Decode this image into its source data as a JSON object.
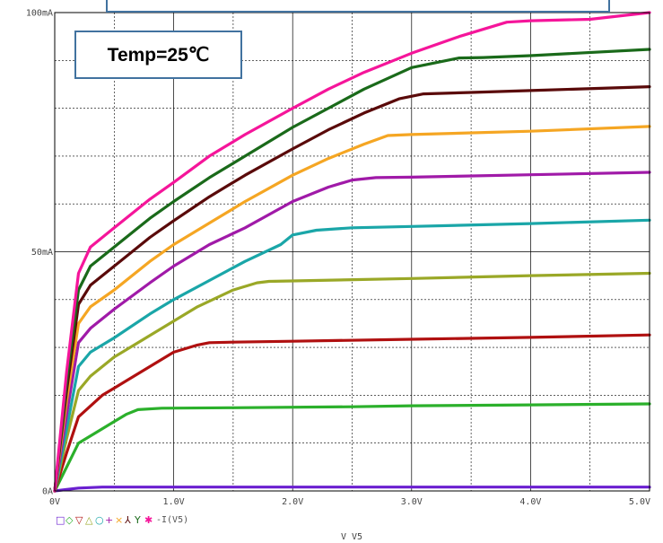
{
  "chart_data": {
    "type": "line",
    "title": "",
    "annotation": "Temp=25℃",
    "xlabel": "V V5",
    "ylabel": "",
    "xlim": [
      0,
      5
    ],
    "ylim": [
      0,
      100
    ],
    "x_ticks": [
      "0V",
      "1.0V",
      "2.0V",
      "3.0V",
      "4.0V",
      "5.0V"
    ],
    "y_ticks": [
      "0A",
      "50mA",
      "100mA"
    ],
    "grid": true,
    "legend": {
      "markers": [
        "□",
        "◇",
        "▽",
        "△",
        "○",
        "+",
        "×",
        "⅄",
        "Y",
        "✱"
      ],
      "marker_colors": [
        "#6a1fd0",
        "#2bb02b",
        "#b01010",
        "#9aa827",
        "#1aa6a8",
        "#a01aa8",
        "#f5a623",
        "#5a0a0a",
        "#1a6a1a",
        "#f5159a"
      ],
      "label": "-I(V5)"
    },
    "series": [
      {
        "color": "#6a1fd0",
        "x": [
          0,
          0.1,
          0.2,
          0.4,
          1.0,
          2.0,
          3.0,
          4.0,
          5.0
        ],
        "y": [
          0,
          0.3,
          0.6,
          0.8,
          0.8,
          0.8,
          0.8,
          0.8,
          0.8
        ]
      },
      {
        "color": "#2bb02b",
        "x": [
          0,
          0.1,
          0.2,
          0.4,
          0.6,
          0.7,
          0.9,
          1.5,
          2.5,
          3.0,
          4.0,
          5.0
        ],
        "y": [
          0,
          5,
          10,
          13,
          16,
          17,
          17.3,
          17.4,
          17.6,
          17.8,
          18,
          18.2
        ]
      },
      {
        "color": "#b01010",
        "x": [
          0,
          0.1,
          0.2,
          0.4,
          0.6,
          0.8,
          1.0,
          1.2,
          1.3,
          1.5,
          2.0,
          3.0,
          4.0,
          5.0
        ],
        "y": [
          0,
          8,
          15.5,
          20,
          23,
          26,
          29,
          30.5,
          31,
          31.1,
          31.3,
          31.7,
          32.1,
          32.6
        ]
      },
      {
        "color": "#9aa827",
        "x": [
          0,
          0.1,
          0.2,
          0.3,
          0.5,
          0.8,
          1.0,
          1.2,
          1.5,
          1.7,
          1.8,
          2.0,
          3.0,
          4.0,
          5.0
        ],
        "y": [
          0,
          11,
          21,
          24,
          28,
          32.5,
          35.5,
          38.5,
          42,
          43.5,
          43.8,
          43.9,
          44.4,
          45,
          45.5
        ]
      },
      {
        "color": "#1aa6a8",
        "x": [
          0,
          0.1,
          0.2,
          0.3,
          0.5,
          0.8,
          1.0,
          1.3,
          1.6,
          1.9,
          2.0,
          2.2,
          2.5,
          3.0,
          4.0,
          5.0
        ],
        "y": [
          0,
          13,
          26,
          29,
          32,
          37,
          40,
          44,
          48,
          51.5,
          53.5,
          54.5,
          55,
          55.3,
          55.9,
          56.6
        ]
      },
      {
        "color": "#a01aa8",
        "x": [
          0,
          0.1,
          0.2,
          0.3,
          0.5,
          0.8,
          1.0,
          1.3,
          1.6,
          2.0,
          2.3,
          2.5,
          2.7,
          3.0,
          4.0,
          5.0
        ],
        "y": [
          0,
          16,
          31,
          34,
          38,
          43.5,
          47,
          51.5,
          55,
          60.5,
          63.5,
          65,
          65.5,
          65.6,
          66.1,
          66.6
        ]
      },
      {
        "color": "#f5a623",
        "x": [
          0,
          0.1,
          0.2,
          0.3,
          0.5,
          0.8,
          1.0,
          1.3,
          1.6,
          2.0,
          2.3,
          2.6,
          2.8,
          3.0,
          4.0,
          5.0
        ],
        "y": [
          0,
          19,
          35,
          38.5,
          42,
          48,
          51.5,
          56,
          60.5,
          66,
          69.5,
          72.5,
          74.3,
          74.5,
          75.2,
          76.2
        ]
      },
      {
        "color": "#5a0a0a",
        "x": [
          0,
          0.1,
          0.2,
          0.3,
          0.5,
          0.8,
          1.0,
          1.3,
          1.6,
          2.0,
          2.3,
          2.6,
          2.9,
          3.1,
          3.5,
          4.0,
          5.0
        ],
        "y": [
          0,
          21,
          39,
          43,
          47,
          53,
          56.5,
          61.5,
          66,
          71.5,
          75.5,
          79,
          82,
          83,
          83.3,
          83.7,
          84.5
        ]
      },
      {
        "color": "#1a6a1a",
        "x": [
          0,
          0.1,
          0.2,
          0.3,
          0.5,
          0.8,
          1.0,
          1.3,
          1.6,
          2.0,
          2.3,
          2.6,
          3.0,
          3.4,
          3.6,
          4.0,
          5.0
        ],
        "y": [
          0,
          23,
          42,
          47,
          51,
          57,
          60.5,
          65.5,
          70,
          76,
          80,
          84,
          88.5,
          90.5,
          90.6,
          91,
          92.3
        ]
      },
      {
        "color": "#f5159a",
        "x": [
          0,
          0.1,
          0.2,
          0.3,
          0.5,
          0.8,
          1.0,
          1.3,
          1.6,
          2.0,
          2.3,
          2.6,
          3.0,
          3.4,
          3.8,
          4.0,
          4.5,
          5.0
        ],
        "y": [
          0,
          25,
          45.5,
          51,
          55,
          61,
          64.5,
          70,
          74.5,
          80,
          84,
          87.5,
          91.5,
          95,
          98,
          98.3,
          98.6,
          100
        ]
      }
    ]
  }
}
